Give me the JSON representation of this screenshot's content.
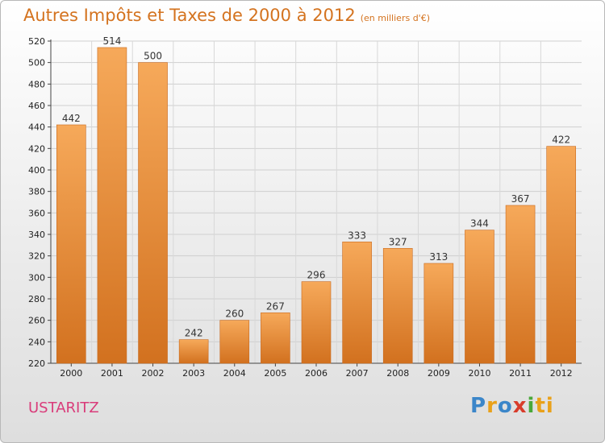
{
  "header": {
    "title": "Autres Impôts et Taxes de 2000 à 2012",
    "subtitle": "(en milliers d'€)"
  },
  "footer": {
    "commune": "USTARITZ",
    "logo_letters": [
      "P",
      "r",
      "o",
      "x",
      "i",
      "ti"
    ]
  },
  "colors": {
    "title": "#d4731f",
    "commune": "#d93c7a",
    "bar_light": "#f6a95a",
    "bar_dark": "#d2711f"
  },
  "chart_data": {
    "type": "bar",
    "title": "Autres Impôts et Taxes de 2000 à 2012",
    "subtitle": "(en milliers d'€)",
    "categories": [
      "2000",
      "2001",
      "2002",
      "2003",
      "2004",
      "2005",
      "2006",
      "2007",
      "2008",
      "2009",
      "2010",
      "2011",
      "2012"
    ],
    "values": [
      442,
      514,
      500,
      242,
      260,
      267,
      296,
      333,
      327,
      313,
      344,
      367,
      422
    ],
    "ylim": [
      220,
      520
    ],
    "yticks": [
      220,
      240,
      260,
      280,
      300,
      320,
      340,
      360,
      380,
      400,
      420,
      440,
      460,
      480,
      500,
      520
    ],
    "grid": true,
    "legend": "none"
  }
}
